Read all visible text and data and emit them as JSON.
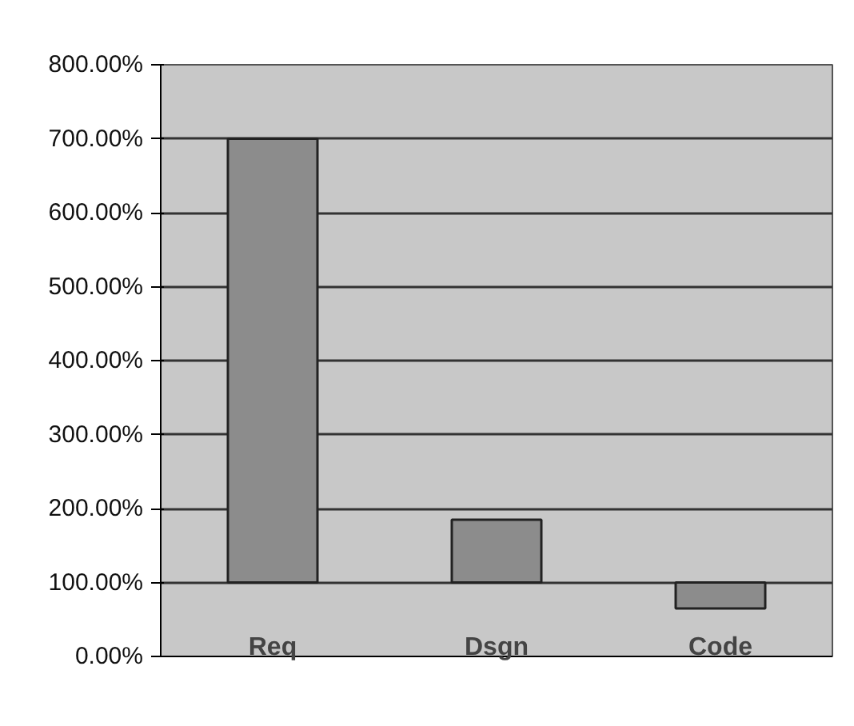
{
  "chart_data": {
    "type": "bar",
    "categories": [
      "Req",
      "Dsgn",
      "Code"
    ],
    "base": [
      100,
      100,
      100
    ],
    "values": [
      600,
      85,
      -35
    ],
    "color": "#8c8c8c",
    "ylim": [
      0,
      800
    ],
    "yticks": [
      {
        "value": 0,
        "label": "0.00%"
      },
      {
        "value": 100,
        "label": "100.00%"
      },
      {
        "value": 200,
        "label": "200.00%"
      },
      {
        "value": 300,
        "label": "300.00%"
      },
      {
        "value": 400,
        "label": "400.00%"
      },
      {
        "value": 500,
        "label": "500.00%"
      },
      {
        "value": 600,
        "label": "600.00%"
      },
      {
        "value": 700,
        "label": "700.00%"
      },
      {
        "value": 800,
        "label": "800.00%"
      }
    ],
    "grid": "y"
  }
}
